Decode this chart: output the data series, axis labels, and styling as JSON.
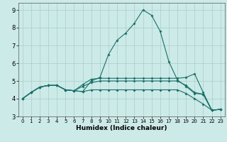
{
  "xlabel": "Humidex (Indice chaleur)",
  "xlim": [
    -0.5,
    23.5
  ],
  "ylim": [
    3.0,
    9.4
  ],
  "yticks": [
    3,
    4,
    5,
    6,
    7,
    8,
    9
  ],
  "xticks": [
    0,
    1,
    2,
    3,
    4,
    5,
    6,
    7,
    8,
    9,
    10,
    11,
    12,
    13,
    14,
    15,
    16,
    17,
    18,
    19,
    20,
    21,
    22,
    23
  ],
  "bg_color": "#cceae8",
  "grid_color": "#aaccca",
  "line_color": "#1a7068",
  "line1_x": [
    0,
    1,
    2,
    3,
    4,
    5,
    6,
    7,
    8,
    9,
    10,
    11,
    12,
    13,
    14,
    15,
    16,
    17,
    18,
    19,
    20,
    21,
    22,
    23
  ],
  "line1_y": [
    4.0,
    4.35,
    4.65,
    4.75,
    4.75,
    4.5,
    4.45,
    4.4,
    5.0,
    5.2,
    6.5,
    7.3,
    7.7,
    8.25,
    9.0,
    8.7,
    7.8,
    6.1,
    5.05,
    4.7,
    4.3,
    4.25,
    3.35,
    3.4
  ],
  "line2_x": [
    0,
    1,
    2,
    3,
    4,
    5,
    6,
    7,
    8,
    9,
    10,
    11,
    12,
    13,
    14,
    15,
    16,
    17,
    18,
    19,
    20,
    21,
    22,
    23
  ],
  "line2_y": [
    4.0,
    4.35,
    4.65,
    4.75,
    4.75,
    4.5,
    4.45,
    4.8,
    5.1,
    5.15,
    5.15,
    5.15,
    5.15,
    5.15,
    5.15,
    5.15,
    5.15,
    5.15,
    5.15,
    5.2,
    5.4,
    4.35,
    3.35,
    3.4
  ],
  "line3_x": [
    0,
    1,
    2,
    3,
    4,
    5,
    6,
    7,
    8,
    9,
    10,
    11,
    12,
    13,
    14,
    15,
    16,
    17,
    18,
    19,
    20,
    21,
    22,
    23
  ],
  "line3_y": [
    4.0,
    4.35,
    4.65,
    4.75,
    4.75,
    4.5,
    4.45,
    4.7,
    4.9,
    5.0,
    5.0,
    5.0,
    5.0,
    5.0,
    5.0,
    5.0,
    5.0,
    5.0,
    5.0,
    4.75,
    4.35,
    4.25,
    3.35,
    3.4
  ],
  "line4_x": [
    0,
    1,
    2,
    3,
    4,
    5,
    6,
    7,
    8,
    9,
    10,
    11,
    12,
    13,
    14,
    15,
    16,
    17,
    18,
    19,
    20,
    21,
    22,
    23
  ],
  "line4_y": [
    4.0,
    4.35,
    4.65,
    4.75,
    4.75,
    4.5,
    4.45,
    4.4,
    4.5,
    4.5,
    4.5,
    4.5,
    4.5,
    4.5,
    4.5,
    4.5,
    4.5,
    4.5,
    4.5,
    4.3,
    4.0,
    3.7,
    3.35,
    3.4
  ]
}
